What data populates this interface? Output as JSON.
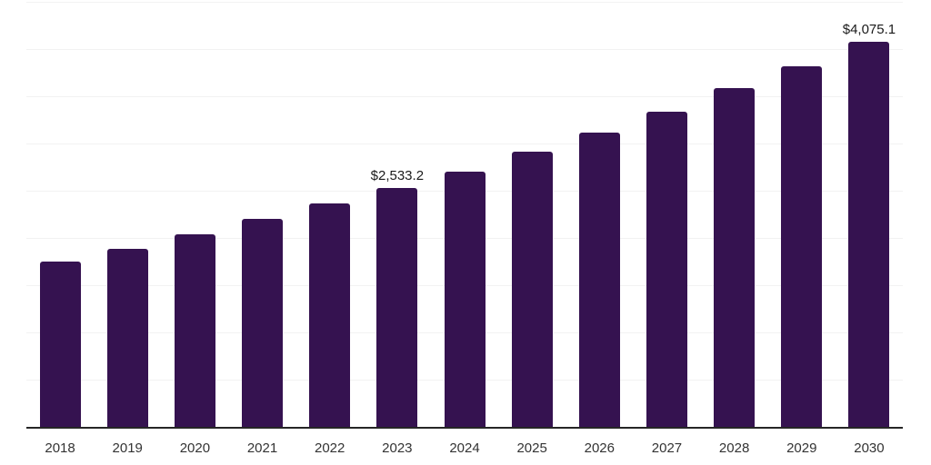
{
  "chart_data": {
    "type": "bar",
    "title": "",
    "xlabel": "",
    "ylabel": "",
    "categories": [
      "2018",
      "2019",
      "2020",
      "2021",
      "2022",
      "2023",
      "2024",
      "2025",
      "2026",
      "2027",
      "2028",
      "2029",
      "2030"
    ],
    "values": [
      1748,
      1882,
      2035,
      2198,
      2361,
      2533.2,
      2706,
      2916,
      3117,
      3338,
      3587,
      3816,
      4075.1
    ],
    "data_labels": {
      "2023": "$2,533.2",
      "2030": "$4,075.1"
    },
    "ylim": [
      0,
      4500
    ],
    "grid_step": 500,
    "grid": true,
    "legend": false,
    "colors": {
      "bar": "#351250",
      "axis_line": "#262626",
      "gridline": "#f2f2f2",
      "tick_label": "#333333",
      "data_label": "#1a1a1a",
      "background": "#ffffff"
    }
  }
}
